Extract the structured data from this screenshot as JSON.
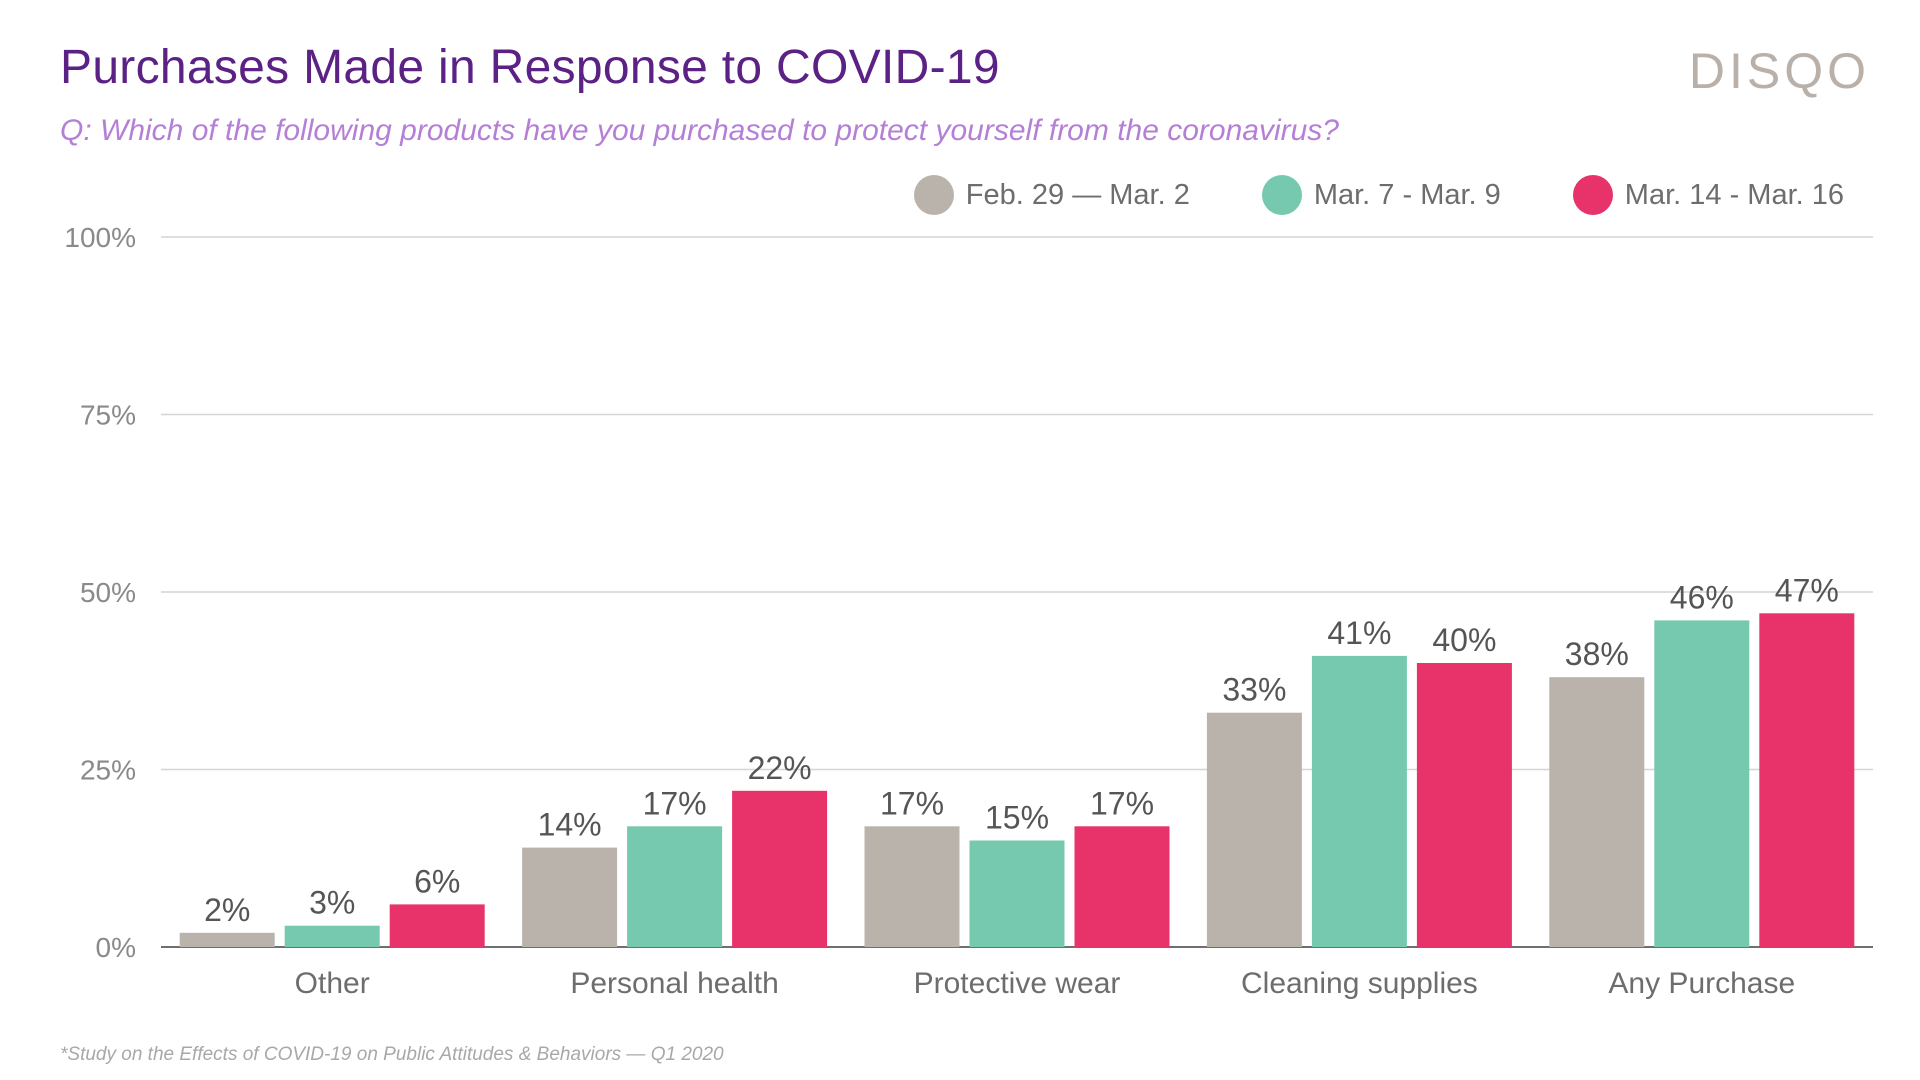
{
  "header": {
    "title": "Purchases Made in Response to COVID-19",
    "subtitle": "Q: Which of the following products have you purchased to protect yourself from the coronavirus?",
    "brand": "DISQO"
  },
  "footnote": "*Study on the Effects of COVID-19 on Public Attitudes & Behaviors — Q1 2020",
  "chart_data": {
    "type": "bar",
    "title": "Purchases Made in Response to COVID-19",
    "xlabel": "",
    "ylabel": "",
    "ylim": [
      0,
      100
    ],
    "yticks": [
      "0%",
      "25%",
      "50%",
      "75%",
      "100%"
    ],
    "ytick_values": [
      0,
      25,
      50,
      75,
      100
    ],
    "grid": true,
    "legend_position": "top-right",
    "categories": [
      "Other",
      "Personal health",
      "Protective wear",
      "Cleaning supplies",
      "Any Purchase"
    ],
    "series": [
      {
        "name": "Feb. 29 — Mar. 2",
        "color": "#bab3ac",
        "values": [
          2,
          14,
          17,
          33,
          38
        ],
        "labels": [
          "2%",
          "14%",
          "17%",
          "33%",
          "38%"
        ]
      },
      {
        "name": "Mar. 7 - Mar. 9",
        "color": "#76c9ae",
        "values": [
          3,
          17,
          15,
          41,
          46
        ],
        "labels": [
          "3%",
          "17%",
          "15%",
          "41%",
          "46%"
        ]
      },
      {
        "name": "Mar. 14 - Mar. 16",
        "color": "#e8326a",
        "values": [
          6,
          22,
          17,
          40,
          47
        ],
        "labels": [
          "6%",
          "22%",
          "17%",
          "40%",
          "47%"
        ]
      }
    ]
  }
}
